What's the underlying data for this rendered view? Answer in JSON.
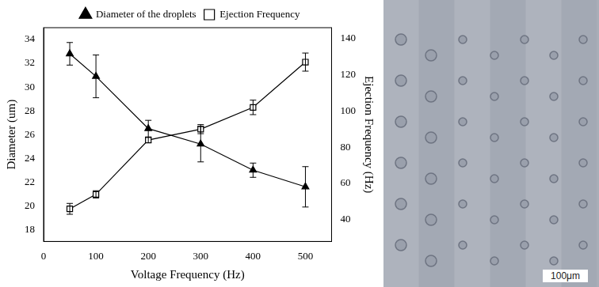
{
  "chart_data": {
    "type": "line",
    "x_label": "Voltage Frequency (Hz)",
    "y_label": "Diameter (um)",
    "y2_label": "Ejection Frequency (Hz)",
    "x": [
      50,
      100,
      200,
      300,
      400,
      500
    ],
    "xlim": [
      0,
      550
    ],
    "xticks": [
      0,
      100,
      200,
      300,
      400,
      500
    ],
    "ylim": [
      17,
      35
    ],
    "yticks": [
      18,
      20,
      22,
      24,
      26,
      28,
      30,
      32,
      34
    ],
    "y2lim": [
      28,
      146
    ],
    "y2ticks": [
      40,
      60,
      80,
      100,
      120,
      140
    ],
    "grid": false,
    "legend": "top",
    "series": [
      {
        "name": "Diameter of the droplets",
        "color": "#000000",
        "marker": "triangle",
        "line_style": "solid",
        "values": [
          32.8,
          30.9,
          26.5,
          25.2,
          23.0,
          21.6
        ],
        "errors": [
          0.95,
          1.8,
          0.7,
          1.5,
          0.6,
          1.7
        ]
      },
      {
        "name": "Ejection Frequency",
        "color": "#000000",
        "marker": "square",
        "line_style": "solid",
        "axis": "y2",
        "values": [
          46,
          54,
          84,
          90,
          102,
          127
        ],
        "errors": [
          3,
          2,
          1.5,
          2.5,
          4,
          5
        ]
      }
    ]
  },
  "image": {
    "scale_bar": "100μm"
  }
}
